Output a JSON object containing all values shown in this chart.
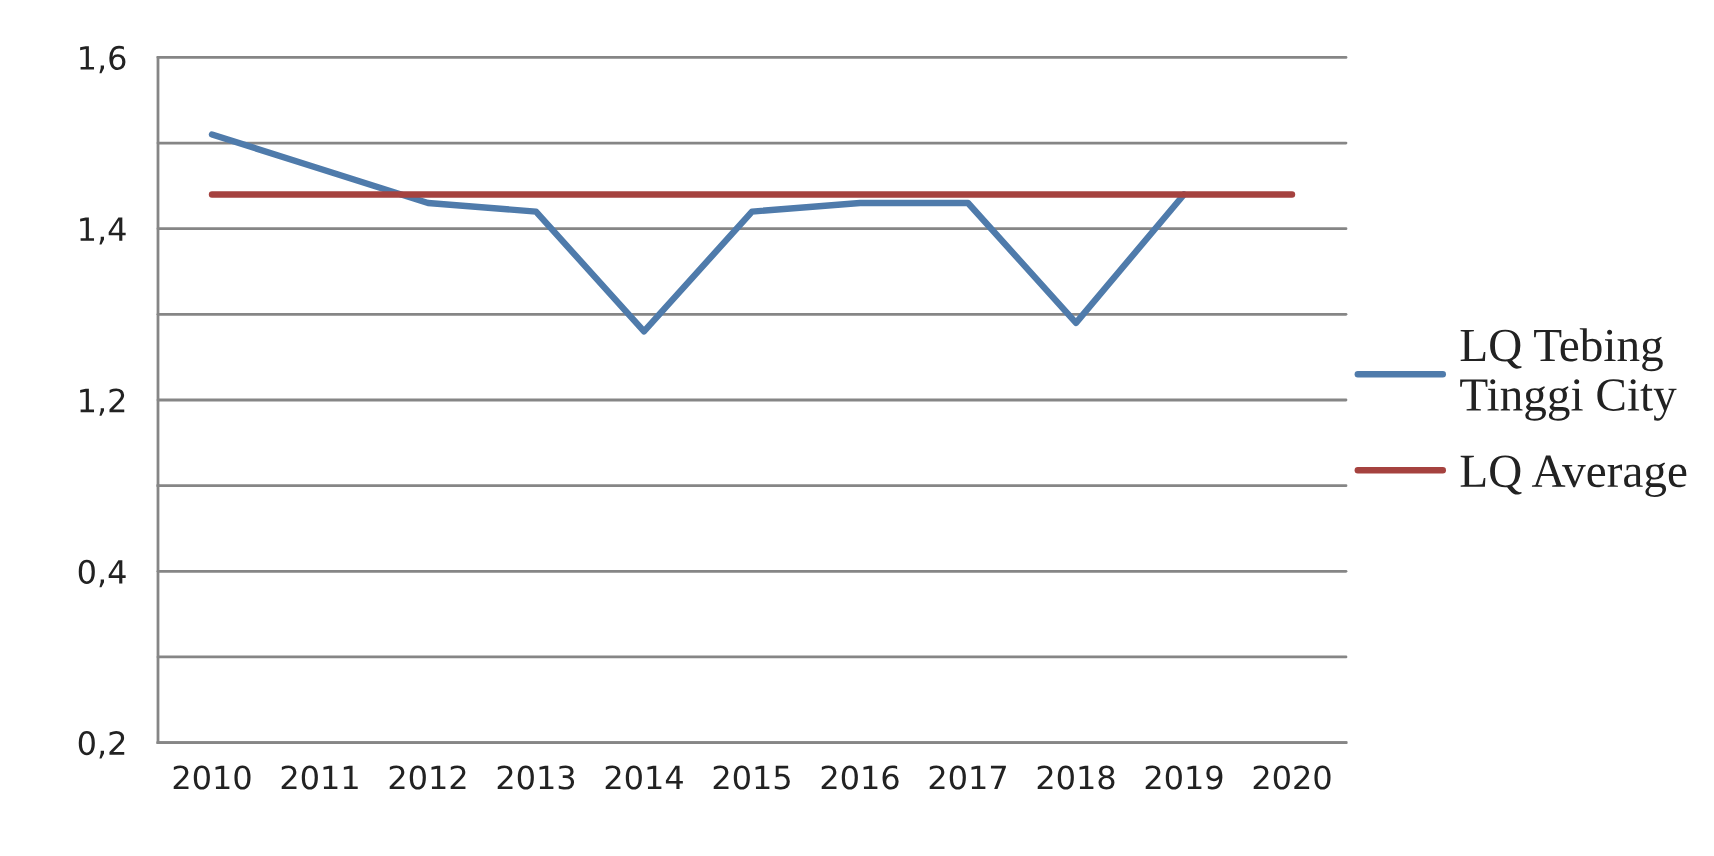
{
  "chart_data": [
    {
      "type": "line",
      "categories": [
        "2010",
        "2011",
        "2012",
        "2013",
        "2014",
        "2015",
        "2016",
        "2017",
        "2018",
        "2019",
        "2020"
      ],
      "series": [
        {
          "name": "LQ Tebing Tinggi City",
          "color": "#4f7bab",
          "values": [
            1.51,
            1.47,
            1.43,
            1.42,
            1.28,
            1.42,
            1.43,
            1.43,
            1.29,
            1.44,
            null
          ]
        },
        {
          "name": "LQ Average",
          "color": "#a5423f",
          "values": [
            1.44,
            1.44,
            1.44,
            1.44,
            1.44,
            1.44,
            1.44,
            1.44,
            1.44,
            1.44,
            1.44
          ]
        }
      ],
      "ylim": [
        1.1,
        1.6
      ],
      "yticks": [
        {
          "value": 1.6,
          "label": "1,6"
        },
        {
          "value": 1.5,
          "label": null
        },
        {
          "value": 1.4,
          "label": "1,4"
        },
        {
          "value": 1.3,
          "label": null
        },
        {
          "value": 1.2,
          "label": "1,2"
        },
        {
          "value": 1.1,
          "label": null
        }
      ],
      "grid": "y",
      "legend": "right",
      "line_style": "solid",
      "tick_labels": "y"
    },
    {
      "type": "line",
      "categories": [
        "2010",
        "2011",
        "2012",
        "2013",
        "2014",
        "2015",
        "2016",
        "2017",
        "2018",
        "2019",
        "2020"
      ],
      "ylim": [
        0.2,
        0.5
      ],
      "yticks": [
        {
          "value": 0.4,
          "label": "0,4"
        },
        {
          "value": 0.3,
          "label": null
        },
        {
          "value": 0.2,
          "label": "0,2"
        }
      ],
      "grid": "y"
    }
  ]
}
